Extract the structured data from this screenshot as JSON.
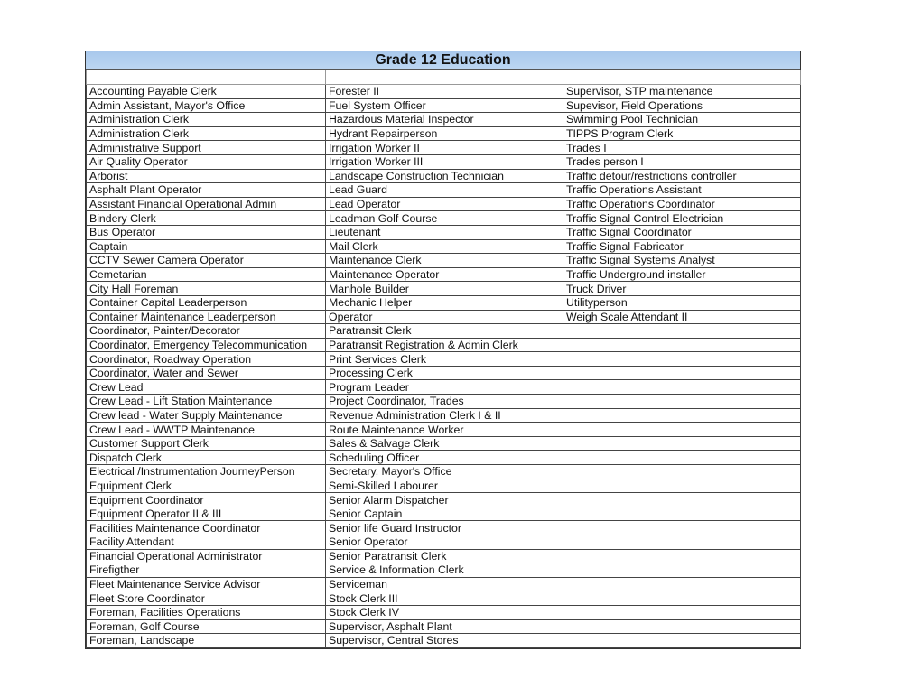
{
  "title": "Grade 12 Education",
  "columns": [
    [
      "Accounting Payable Clerk",
      "Admin Assistant, Mayor's Office",
      "Administration Clerk",
      "Administration Clerk",
      "Administrative Support",
      "Air Quality Operator",
      "Arborist",
      "Asphalt Plant Operator",
      "Assistant Financial Operational Admin",
      "Bindery Clerk",
      "Bus Operator",
      "Captain",
      "CCTV Sewer Camera Operator",
      "Cemetarian",
      "City Hall Foreman",
      "Container Capital Leaderperson",
      "Container Maintenance Leaderperson",
      "Coordinator,  Painter/Decorator",
      "Coordinator, Emergency Telecommunication",
      "Coordinator, Roadway Operation",
      "Coordinator, Water and Sewer",
      "Crew Lead",
      "Crew Lead - Lift Station Maintenance",
      "Crew lead - Water Supply Maintenance",
      "Crew Lead - WWTP Maintenance",
      "Customer Support Clerk",
      "Dispatch Clerk",
      "Electrical /Instrumentation JourneyPerson",
      "Equipment Clerk",
      "Equipment Coordinator",
      "Equipment Operator II & III",
      "Facilities Maintenance Coordinator",
      "Facility Attendant",
      "Financial Operational Administrator",
      "Firefigther",
      "Fleet Maintenance Service Advisor",
      "Fleet Store Coordinator",
      "Foreman, Facilities Operations",
      "Foreman, Golf Course",
      "Foreman, Landscape"
    ],
    [
      "Forester II",
      "Fuel System Officer",
      "Hazardous Material Inspector",
      "Hydrant Repairperson",
      "Irrigation Worker II",
      "Irrigation Worker III",
      "Landscape Construction Technician",
      "Lead Guard",
      "Lead Operator",
      "Leadman Golf Course",
      "Lieutenant",
      "Mail Clerk",
      "Maintenance Clerk",
      "Maintenance Operator",
      "Manhole Builder",
      "Mechanic Helper",
      "Operator",
      "Paratransit Clerk",
      "Paratransit Registration & Admin Clerk",
      "Print Services Clerk",
      "Processing Clerk",
      "Program Leader",
      "Project Coordinator, Trades",
      "Revenue Administration Clerk I & II",
      "Route Maintenance Worker",
      "Sales & Salvage Clerk",
      "Scheduling Officer",
      "Secretary, Mayor's Office",
      "Semi-Skilled Labourer",
      "Senior Alarm Dispatcher",
      "Senior Captain",
      "Senior life Guard Instructor",
      "Senior Operator",
      "Senior Paratransit Clerk",
      "Service & Information Clerk",
      "Serviceman",
      "Stock Clerk III",
      "Stock Clerk IV",
      "Supervisor, Asphalt Plant",
      "Supervisor, Central Stores"
    ],
    [
      "Supervisor, STP maintenance",
      "Supevisor, Field Operations",
      "Swimming Pool Technician",
      "TIPPS Program Clerk",
      "Trades I",
      "Trades person I",
      "Traffic detour/restrictions controller",
      "Traffic Operations Assistant",
      "Traffic Operations Coordinator",
      "Traffic Signal Control Electrician",
      "Traffic Signal Coordinator",
      "Traffic Signal Fabricator",
      "Traffic Signal Systems Analyst",
      "Traffic Underground installer",
      "Truck Driver",
      "Utilityperson",
      "Weigh Scale Attendant II"
    ]
  ],
  "colors": {
    "header_fill": "#b4d0f0",
    "border": "#444444"
  }
}
